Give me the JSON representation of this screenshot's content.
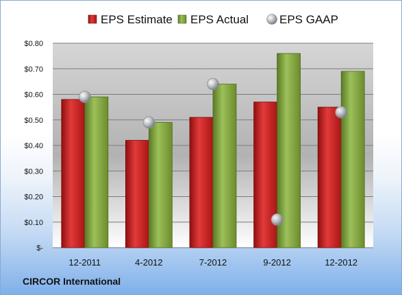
{
  "footer": {
    "company": "CIRCOR International"
  },
  "chart_data": {
    "type": "bar",
    "title": "",
    "xlabel": "",
    "ylabel": "",
    "categories": [
      "12-2011",
      "4-2012",
      "7-2012",
      "9-2012",
      "12-2012"
    ],
    "series": [
      {
        "name": "EPS Estimate",
        "kind": "bar",
        "color": "#cc1f1f",
        "values": [
          0.58,
          0.42,
          0.51,
          0.57,
          0.55
        ]
      },
      {
        "name": "EPS Actual",
        "kind": "bar",
        "color": "#7fa23a",
        "values": [
          0.59,
          0.49,
          0.64,
          0.76,
          0.69
        ]
      },
      {
        "name": "EPS GAAP",
        "kind": "marker",
        "color": "#b9bcc2",
        "values": [
          0.59,
          0.49,
          0.64,
          0.11,
          0.53
        ]
      }
    ],
    "ylim": [
      0,
      0.8
    ],
    "yticks": [
      0,
      0.1,
      0.2,
      0.3,
      0.4,
      0.5,
      0.6,
      0.7,
      0.8
    ],
    "ytick_labels": [
      "$-",
      "$0.10",
      "$0.20",
      "$0.30",
      "$0.40",
      "$0.50",
      "$0.60",
      "$0.70",
      "$0.80"
    ],
    "grid": true,
    "legend_position": "top"
  }
}
